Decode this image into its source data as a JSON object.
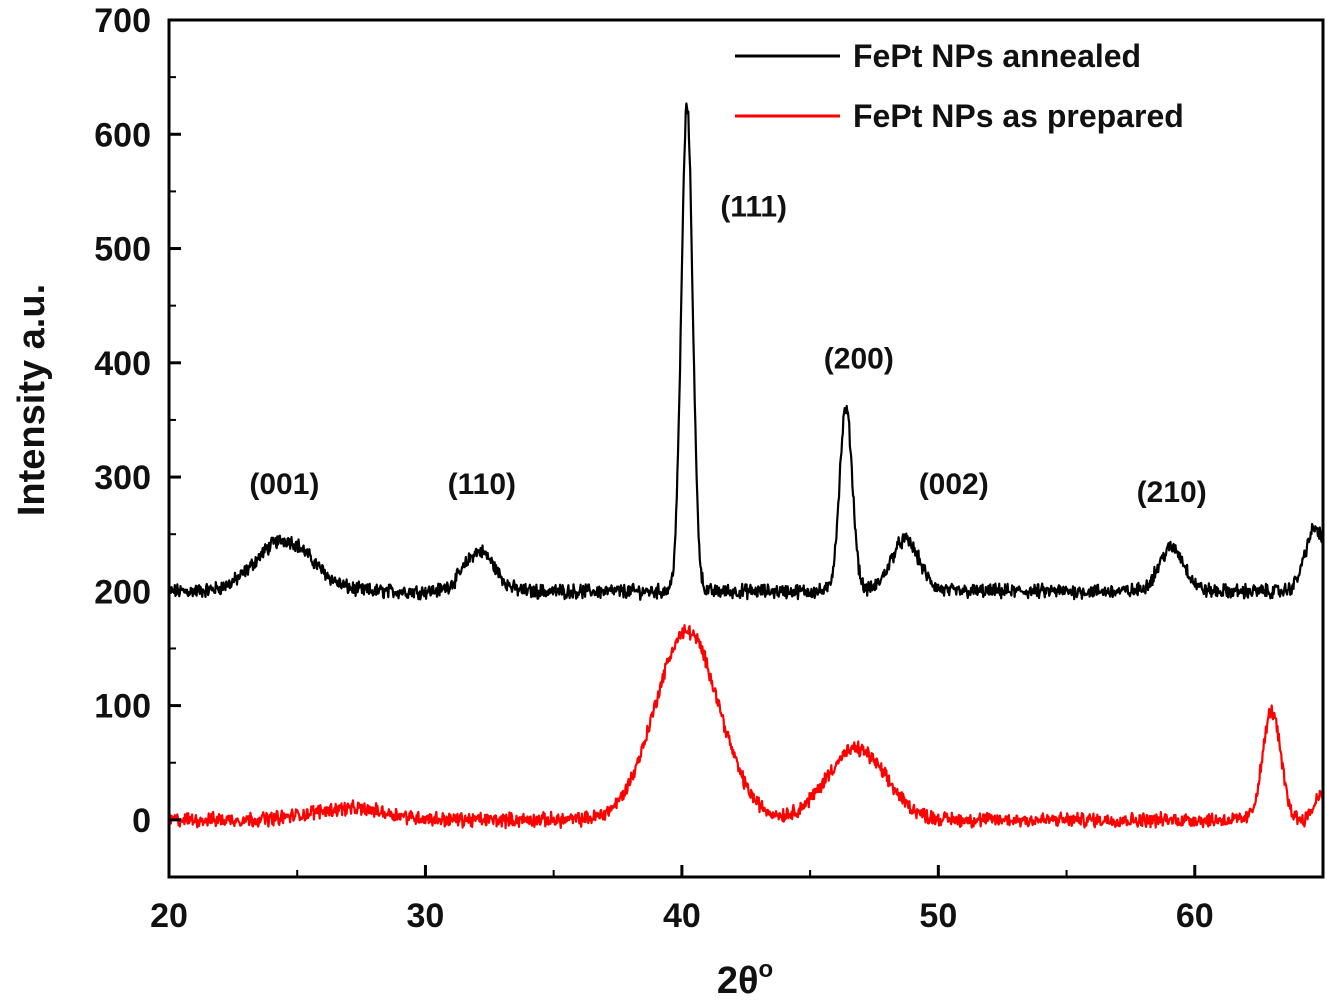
{
  "chart_data": {
    "type": "line",
    "xlabel": "2θ",
    "xlabel_sup": "o",
    "ylabel": "Intensity a.u.",
    "xlim": [
      20,
      65
    ],
    "ylim": [
      -50,
      700
    ],
    "xticks": [
      20,
      30,
      40,
      50,
      60
    ],
    "yticks": [
      0,
      100,
      200,
      300,
      400,
      500,
      600,
      700
    ],
    "grid": false,
    "legend_position": "top-right",
    "series": [
      {
        "name": "FePt NPs annealed",
        "color": "#000000",
        "baseline": 200,
        "noise": 5,
        "peaks": [
          {
            "x": 24.5,
            "height": 45,
            "width": 1.1
          },
          {
            "x": 32.1,
            "height": 35,
            "width": 0.6
          },
          {
            "x": 40.2,
            "height": 425,
            "width": 0.22
          },
          {
            "x": 46.4,
            "height": 160,
            "width": 0.25
          },
          {
            "x": 48.7,
            "height": 45,
            "width": 0.55
          },
          {
            "x": 59.1,
            "height": 38,
            "width": 0.5
          },
          {
            "x": 64.7,
            "height": 55,
            "width": 0.4
          }
        ],
        "points": [
          [
            20,
            200
          ],
          [
            22.5,
            200
          ],
          [
            24.5,
            247
          ],
          [
            26.5,
            200
          ],
          [
            31.2,
            203
          ],
          [
            32.1,
            235
          ],
          [
            33.2,
            200
          ],
          [
            39.4,
            205
          ],
          [
            40.2,
            625
          ],
          [
            41.0,
            208
          ],
          [
            45.8,
            205
          ],
          [
            46.4,
            360
          ],
          [
            47.0,
            210
          ],
          [
            48.7,
            245
          ],
          [
            49.8,
            200
          ],
          [
            58.3,
            202
          ],
          [
            59.1,
            238
          ],
          [
            60.0,
            200
          ],
          [
            64.1,
            205
          ],
          [
            64.7,
            255
          ],
          [
            65,
            240
          ]
        ]
      },
      {
        "name": "FePt NPs as prepared",
        "color": "#ff0000",
        "baseline": 0,
        "noise": 5,
        "peaks": [
          {
            "x": 27,
            "height": 10,
            "width": 1.5
          },
          {
            "x": 40.2,
            "height": 165,
            "width": 1.25
          },
          {
            "x": 46.8,
            "height": 62,
            "width": 1.15
          },
          {
            "x": 63.0,
            "height": 95,
            "width": 0.35
          },
          {
            "x": 65.0,
            "height": 25,
            "width": 0.3
          }
        ],
        "points": [
          [
            20,
            0
          ],
          [
            23,
            -8
          ],
          [
            27,
            10
          ],
          [
            30,
            3
          ],
          [
            36,
            -3
          ],
          [
            37.5,
            5
          ],
          [
            40.2,
            168
          ],
          [
            42.5,
            60
          ],
          [
            44,
            5
          ],
          [
            46.8,
            62
          ],
          [
            49,
            5
          ],
          [
            55,
            0
          ],
          [
            62.5,
            10
          ],
          [
            63.0,
            98
          ],
          [
            63.6,
            20
          ],
          [
            64.5,
            5
          ],
          [
            65,
            28
          ]
        ]
      }
    ],
    "annotations": [
      {
        "text": "(001)",
        "x": 24.5,
        "y": 285
      },
      {
        "text": "(110)",
        "x": 32.2,
        "y": 285
      },
      {
        "text": "(111)",
        "x": 42.8,
        "y": 528
      },
      {
        "text": "(200)",
        "x": 46.9,
        "y": 395
      },
      {
        "text": "(002)",
        "x": 50.6,
        "y": 285
      },
      {
        "text": "(210)",
        "x": 59.1,
        "y": 278
      }
    ]
  }
}
